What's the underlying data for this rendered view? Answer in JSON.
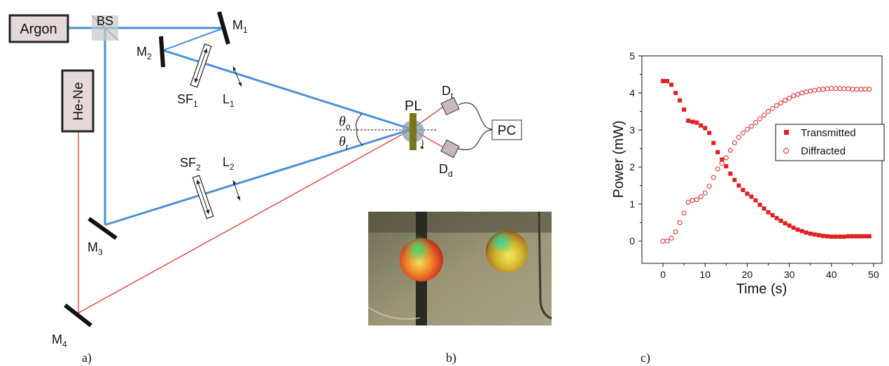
{
  "diagram": {
    "argon": "Argon",
    "bs": "BS",
    "heNe": "He-Ne",
    "mirrors": {
      "m1": "M",
      "m1_sub": "1",
      "m2": "M",
      "m2_sub": "2",
      "m3": "M",
      "m3_sub": "3",
      "m4": "M",
      "m4_sub": "4"
    },
    "sf1": "SF",
    "sf1_sub": "1",
    "sf2": "SF",
    "sf2_sub": "2",
    "l1": "L",
    "l1_sub": "1",
    "l2": "L",
    "l2_sub": "2",
    "pl": "PL",
    "dt": "D",
    "dt_sub": "t",
    "dd": "D",
    "dd_sub": "d",
    "pc": "PC",
    "theta_o": "θ",
    "theta_o_sub": "o",
    "theta_r": "θ",
    "theta_r_sub": "r",
    "colors": {
      "blue_beam": "#4a90d9",
      "red_beam": "#e02020",
      "box_fill": "#e6d8d8"
    }
  },
  "captions": {
    "a": "a)",
    "b": "b)",
    "c": "c)"
  },
  "chart_data": {
    "type": "scatter",
    "xlabel": "Time (s)",
    "ylabel": "Power (mW)",
    "xlim": [
      -5,
      52
    ],
    "ylim": [
      -0.6,
      5
    ],
    "xticks": [
      "0",
      "10",
      "20",
      "30",
      "40",
      "50"
    ],
    "yticks": [
      "0",
      "1",
      "2",
      "3",
      "4",
      "5"
    ],
    "legend_position": "right-middle",
    "series": [
      {
        "name": "Transmitted",
        "marker": "filled-square",
        "color": "#e02020",
        "x": [
          0,
          1,
          2,
          3,
          4,
          5,
          6,
          7,
          8,
          9,
          10,
          11,
          12,
          13,
          14,
          15,
          16,
          17,
          18,
          19,
          20,
          21,
          22,
          23,
          24,
          25,
          26,
          27,
          28,
          29,
          30,
          31,
          32,
          33,
          34,
          35,
          36,
          37,
          38,
          39,
          40,
          41,
          42,
          43,
          44,
          45,
          46,
          47,
          48,
          49
        ],
        "y": [
          4.32,
          4.32,
          4.22,
          4.0,
          3.8,
          3.55,
          3.25,
          3.22,
          3.2,
          3.12,
          3.05,
          2.92,
          2.65,
          2.4,
          2.2,
          2.02,
          1.82,
          1.65,
          1.5,
          1.38,
          1.28,
          1.2,
          1.1,
          0.98,
          0.88,
          0.78,
          0.7,
          0.62,
          0.55,
          0.48,
          0.42,
          0.36,
          0.31,
          0.27,
          0.23,
          0.2,
          0.18,
          0.16,
          0.14,
          0.13,
          0.12,
          0.12,
          0.12,
          0.12,
          0.13,
          0.13,
          0.13,
          0.13,
          0.13,
          0.13
        ]
      },
      {
        "name": "Diffracted",
        "marker": "open-circle",
        "color": "#e02020",
        "x": [
          0,
          1,
          2,
          3,
          4,
          5,
          6,
          7,
          8,
          9,
          10,
          11,
          12,
          13,
          14,
          15,
          16,
          17,
          18,
          19,
          20,
          21,
          22,
          23,
          24,
          25,
          26,
          27,
          28,
          29,
          30,
          31,
          32,
          33,
          34,
          35,
          36,
          37,
          38,
          39,
          40,
          41,
          42,
          43,
          44,
          45,
          46,
          47,
          48,
          49
        ],
        "y": [
          0.0,
          0.0,
          0.08,
          0.25,
          0.5,
          0.76,
          1.05,
          1.1,
          1.12,
          1.2,
          1.3,
          1.48,
          1.72,
          1.95,
          2.1,
          2.25,
          2.45,
          2.65,
          2.8,
          2.92,
          3.02,
          3.1,
          3.2,
          3.3,
          3.4,
          3.5,
          3.58,
          3.66,
          3.73,
          3.8,
          3.86,
          3.92,
          3.96,
          4.0,
          4.03,
          4.05,
          4.07,
          4.09,
          4.1,
          4.11,
          4.12,
          4.12,
          4.12,
          4.11,
          4.11,
          4.1,
          4.1,
          4.1,
          4.1,
          4.1
        ]
      }
    ]
  }
}
